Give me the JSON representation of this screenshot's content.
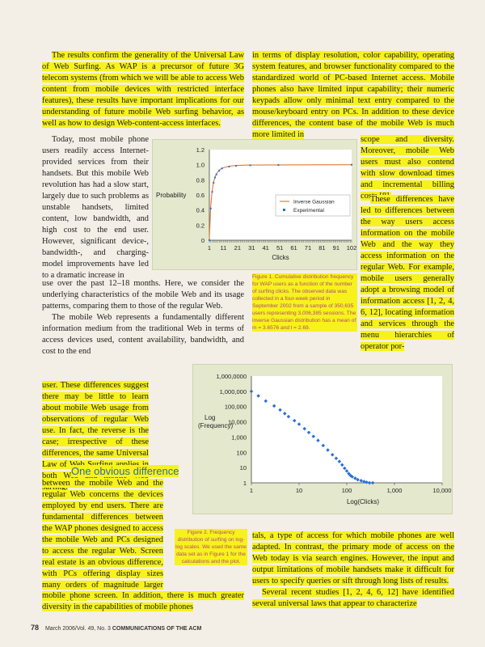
{
  "left_col_top": "The results confirm the generality of the Universal Law of Web Surfing. As WAP is a precursor of future 3G telecom systems (from which we will be able to access Web content from mobile devices with restricted interface features), these results have important implications for our understanding of future mobile Web surfing behavior, as well as how to design Web-content-access interfaces.",
  "left_narrow_1": "Today, most mobile phone users readily access Internet-provided services from their handsets. But this mobile Web revolution has had a slow start, largely due to such problems as unstable handsets, limited content, low bandwidth, and high cost to the end user. However, significant device-, bandwidth-, and charging-model improvements have led to a dramatic increase in",
  "left_col_mid": "use over the past 12–18 months. Here, we consider the underlying characteristics of the mobile Web and its usage patterns, comparing them to those of the regular Web.",
  "left_col_mid2": "The mobile Web represents a fundamentally different information medium from the traditional Web in terms of access devices used, content availability, bandwidth, and cost to the end",
  "left_narrow_2": "user. These differences suggest there may be little to learn about mobile Web usage from observations of regular Web use. In fact, the reverse is the case; irrespective of these differences, the same Universal Law of Web Surfing applies in both Web and mobile Web surfing.",
  "heading": "One obvious difference",
  "left_narrow_3": "between the mobile Web and the regular Web concerns the devices employed by end users. There are fundamental differences between the WAP phones designed to access the mobile Web and PCs designed to access the regular Web. Screen real estate is an obvious difference, with PCs offering display sizes many orders of magnitude larger than a typical",
  "left_col_bottom": "mobile phone screen. In addition, there is much greater diversity in the capabilities of mobile phones",
  "right_col_top": "in terms of display resolution, color capability, operating system features, and browser functionality compared to the standardized world of PC-based Internet access. Mobile phones also have limited input capability; their numeric keypads allow only minimal text entry compared to the mouse/keyboard entry on PCs. In addition to these device differences, the content base of the mobile Web is much more limited in",
  "right_narrow_1": "scope and diversity. Moreover, mobile Web users must also contend with slow download times and incremental billing costs [8].",
  "right_narrow_2": "These differences have led to differences between the way users access information on the mobile Web and the way they access information on the regular Web. For example, mobile users generally adopt a browsing model of information access [1, 2, 4, 6, 12], locating information and services through the menu hierarchies of operator por-",
  "right_col_bottom": "tals, a type of access for which mobile phones are well adapted. In contrast, the primary mode of access on the Web today is via search engines. However, the input and output limitations of mobile handsets make it difficult for users to specify queries or sift through long lists of results.",
  "right_col_bottom2": "Several recent studies [1, 2, 4, 6, 12] have identified several universal laws that appear to characterize",
  "figure1_caption": "Figure 1. Cumulative distribution frequency for WAP users as a function of the number of surfing clicks. The observed data was collected in a four-week period in September 2002 from a sample of 350,635 users representing 3,006,385 sessions. The inverse Gaussian distribution has a mean of m = 3.6576 and l = 2.69.",
  "figure2_caption": "Figure 2. Frequency distribution of surfing on log-log scales. We used the same data set as in Figure 1 for the calculations and the plot.",
  "footer": {
    "page_number": "78",
    "issue": "March 2006/Vol. 49, No. 3",
    "journal": "COMMUNICATIONS OF THE ACM"
  },
  "colors": {
    "highlight": "#f7f21c",
    "figure_bg": "#e4e8cd",
    "caption": "#b04a7a",
    "heading": "#2a6fa0",
    "series_line": "#2c6fd6",
    "gaussian": "#e07a30"
  },
  "chart_data": [
    {
      "type": "line",
      "xlabel": "Clicks",
      "ylabel": "Probability",
      "ylim": [
        0,
        1.2
      ],
      "yticks": [
        "0",
        "0.2",
        "0.4",
        "0.6",
        "0.8",
        "1.0",
        "1.2"
      ],
      "xticks": [
        "1",
        "11",
        "21",
        "31",
        "41",
        "51",
        "61",
        "71",
        "81",
        "91",
        "102"
      ],
      "legend": "right-center",
      "series": [
        {
          "name": "Inverse Gaussian",
          "x": [
            1,
            2,
            3,
            4,
            5,
            6,
            8,
            10,
            15,
            20,
            30,
            50,
            102
          ],
          "y": [
            0.02,
            0.45,
            0.66,
            0.77,
            0.84,
            0.88,
            0.93,
            0.955,
            0.98,
            0.99,
            0.995,
            0.998,
            1.0
          ]
        },
        {
          "name": "Experimental",
          "x": [
            1,
            2,
            3,
            4,
            5,
            6,
            8,
            10,
            15,
            20,
            30,
            50,
            102
          ],
          "y": [
            0.0,
            0.42,
            0.64,
            0.76,
            0.83,
            0.87,
            0.92,
            0.95,
            0.975,
            0.985,
            0.993,
            0.997,
            1.0
          ]
        }
      ]
    },
    {
      "type": "scatter",
      "xlabel": "Log(Clicks)",
      "ylabel": "Log (Frequency)",
      "xscale": "log",
      "yscale": "log",
      "xticks": [
        "1",
        "10",
        "100",
        "1,000",
        "10,000"
      ],
      "yticks": [
        "1",
        "10",
        "100",
        "1,000",
        "10,000",
        "100,000",
        "1,000,000",
        "1,000,0000"
      ],
      "x": [
        1,
        1.4,
        2,
        3,
        4,
        5,
        6,
        8,
        10,
        13,
        16,
        20,
        25,
        32,
        40,
        50,
        60,
        70,
        80,
        90,
        100,
        110,
        120,
        130,
        150,
        170,
        200,
        230,
        260,
        300,
        350
      ],
      "y": [
        1000000,
        500000,
        230000,
        110000,
        60000,
        35000,
        22000,
        12000,
        7000,
        3500,
        2000,
        1100,
        600,
        280,
        140,
        70,
        40,
        25,
        15,
        9,
        6,
        4,
        3,
        2.5,
        2,
        1.6,
        1.4,
        1.2,
        1.1,
        1,
        1
      ]
    }
  ]
}
